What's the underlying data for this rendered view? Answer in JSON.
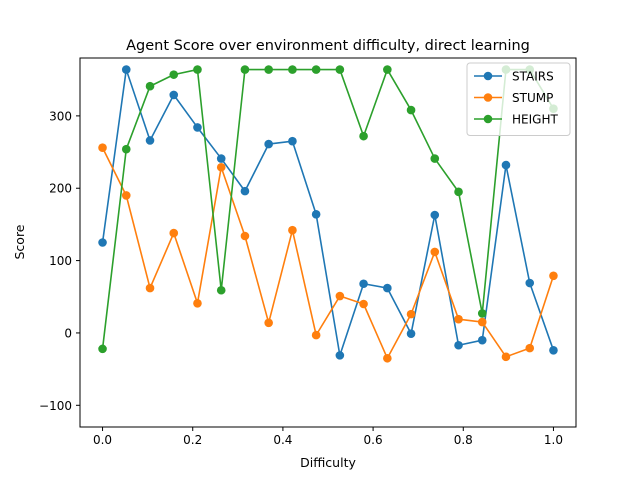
{
  "chart_data": {
    "type": "line",
    "title": "Agent Score over environment difficulty, direct learning",
    "xlabel": "Difficulty",
    "ylabel": "Score",
    "xlim": [
      -0.05,
      1.05
    ],
    "ylim": [
      -130,
      380
    ],
    "x_ticks": [
      0.0,
      0.2,
      0.4,
      0.6,
      0.8,
      1.0
    ],
    "x_tick_labels": [
      "0.0",
      "0.2",
      "0.4",
      "0.6",
      "0.8",
      "1.0"
    ],
    "y_ticks": [
      -100,
      0,
      100,
      200,
      300
    ],
    "y_tick_labels": [
      "−100",
      "0",
      "100",
      "200",
      "300"
    ],
    "grid": false,
    "legend_position": "top-right",
    "x": [
      0.0,
      0.0526,
      0.1053,
      0.1579,
      0.2105,
      0.2632,
      0.3158,
      0.3684,
      0.4211,
      0.4737,
      0.5263,
      0.5789,
      0.6316,
      0.6842,
      0.7368,
      0.7895,
      0.8421,
      0.8947,
      0.9474,
      1.0
    ],
    "series": [
      {
        "name": "STAIRS",
        "color": "#1f77b4",
        "values": [
          125,
          364,
          266,
          329,
          284,
          241,
          196,
          261,
          265,
          164,
          -31,
          68,
          62,
          -1,
          163,
          -17,
          -10,
          232,
          69,
          -24
        ]
      },
      {
        "name": "STUMP",
        "color": "#ff7f0e",
        "values": [
          256,
          190,
          62,
          138,
          41,
          229,
          134,
          14,
          142,
          -3,
          51,
          40,
          -35,
          26,
          112,
          19,
          15,
          -33,
          -21,
          79
        ]
      },
      {
        "name": "HEIGHT",
        "color": "#2ca02c",
        "values": [
          -22,
          254,
          341,
          357,
          364,
          59,
          364,
          364,
          364,
          364,
          364,
          272,
          364,
          308,
          241,
          195,
          27,
          364,
          364,
          310
        ]
      }
    ]
  }
}
